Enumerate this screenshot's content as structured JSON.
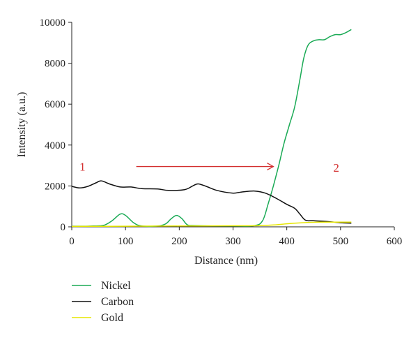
{
  "chart_data": {
    "type": "line",
    "title": "",
    "xlabel": "Distance (nm)",
    "ylabel": "Intensity (a.u.)",
    "xlim": [
      0,
      600
    ],
    "ylim": [
      0,
      10000
    ],
    "xticks": [
      0,
      100,
      200,
      300,
      400,
      500,
      600
    ],
    "yticks": [
      0,
      2000,
      4000,
      6000,
      8000,
      10000
    ],
    "grid": false,
    "legend_position": "bottom-left",
    "series": [
      {
        "name": "Nickel",
        "color": "#1aaa55",
        "points": [
          [
            0,
            30
          ],
          [
            40,
            40
          ],
          [
            60,
            80
          ],
          [
            75,
            300
          ],
          [
            90,
            620
          ],
          [
            100,
            560
          ],
          [
            115,
            200
          ],
          [
            130,
            40
          ],
          [
            160,
            40
          ],
          [
            175,
            150
          ],
          [
            185,
            400
          ],
          [
            195,
            560
          ],
          [
            205,
            400
          ],
          [
            215,
            100
          ],
          [
            230,
            60
          ],
          [
            300,
            40
          ],
          [
            340,
            60
          ],
          [
            355,
            300
          ],
          [
            365,
            1100
          ],
          [
            375,
            2000
          ],
          [
            385,
            3000
          ],
          [
            395,
            4100
          ],
          [
            405,
            5000
          ],
          [
            415,
            5900
          ],
          [
            425,
            7300
          ],
          [
            432,
            8300
          ],
          [
            440,
            8900
          ],
          [
            450,
            9100
          ],
          [
            460,
            9150
          ],
          [
            470,
            9150
          ],
          [
            480,
            9300
          ],
          [
            490,
            9400
          ],
          [
            500,
            9400
          ],
          [
            510,
            9500
          ],
          [
            520,
            9650
          ]
        ]
      },
      {
        "name": "Carbon",
        "color": "#111111",
        "points": [
          [
            0,
            1980
          ],
          [
            15,
            1900
          ],
          [
            30,
            1980
          ],
          [
            45,
            2150
          ],
          [
            55,
            2250
          ],
          [
            70,
            2100
          ],
          [
            90,
            1950
          ],
          [
            110,
            1950
          ],
          [
            130,
            1870
          ],
          [
            160,
            1850
          ],
          [
            180,
            1780
          ],
          [
            210,
            1820
          ],
          [
            225,
            2000
          ],
          [
            235,
            2100
          ],
          [
            250,
            1980
          ],
          [
            270,
            1780
          ],
          [
            300,
            1650
          ],
          [
            315,
            1700
          ],
          [
            340,
            1750
          ],
          [
            360,
            1650
          ],
          [
            380,
            1400
          ],
          [
            400,
            1100
          ],
          [
            415,
            900
          ],
          [
            425,
            600
          ],
          [
            435,
            320
          ],
          [
            450,
            300
          ],
          [
            480,
            250
          ],
          [
            500,
            200
          ],
          [
            520,
            180
          ]
        ]
      },
      {
        "name": "Gold",
        "color": "#e6e600",
        "points": [
          [
            0,
            20
          ],
          [
            100,
            30
          ],
          [
            200,
            40
          ],
          [
            300,
            50
          ],
          [
            350,
            60
          ],
          [
            380,
            100
          ],
          [
            400,
            150
          ],
          [
            430,
            200
          ],
          [
            460,
            230
          ],
          [
            490,
            230
          ],
          [
            520,
            230
          ]
        ]
      }
    ],
    "annotations": [
      {
        "text": "1",
        "x": 20,
        "y": 2950
      },
      {
        "text": "2",
        "x": 492,
        "y": 2900
      }
    ],
    "arrow": {
      "from": [
        120,
        2950
      ],
      "to": [
        375,
        2950
      ],
      "color": "#d32f2f"
    }
  }
}
